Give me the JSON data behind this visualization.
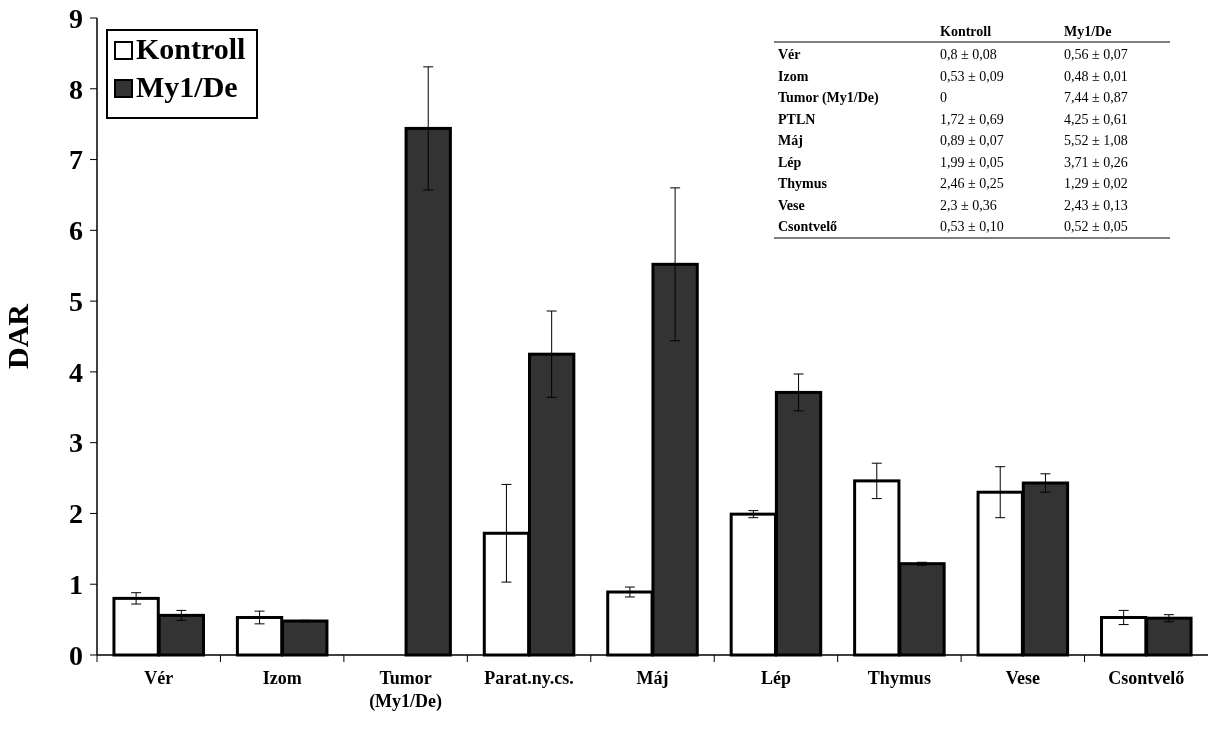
{
  "chart_data": {
    "type": "bar",
    "ylabel": "DAR",
    "categories": [
      "Vér",
      "Izom",
      "Tumor\n(My1/De)",
      "Parat.ny.cs.",
      "Máj",
      "Lép",
      "Thymus",
      "Vese",
      "Csontvelő"
    ],
    "series": [
      {
        "name": "Kontroll",
        "color": "#ffffff",
        "values": [
          0.8,
          0.53,
          0,
          1.72,
          0.89,
          1.99,
          2.46,
          2.3,
          0.53
        ],
        "errors": [
          0.08,
          0.09,
          null,
          0.69,
          0.07,
          0.05,
          0.25,
          0.36,
          0.1
        ]
      },
      {
        "name": "My1/De",
        "color": "#333333",
        "values": [
          0.56,
          0.48,
          7.44,
          4.25,
          5.52,
          3.71,
          1.29,
          2.43,
          0.52
        ],
        "errors": [
          0.07,
          0.01,
          0.87,
          0.61,
          1.08,
          0.26,
          0.02,
          0.13,
          0.05
        ]
      }
    ],
    "annotations": [
      "Vér",
      "0,8 ± 0,08",
      "0,56 ± 0,07",
      "Izom",
      "0,53 ± 0,09",
      "0,48 ± 0,01",
      "Tumor (My1/De)",
      "0",
      "7,44 ± 0,87",
      "PTLN",
      "1,72 ± 0,69",
      "4,25 ± 0,61",
      "Máj",
      "0,89 ± 0,07",
      "5,52 ± 1,08",
      "Lép",
      "1,99 ± 0,05",
      "3,71 ± 0,26",
      "Thymus",
      "2,46 ± 0,25",
      "1,29 ± 0,02",
      "Vese",
      "2,3 ± 0,36",
      "2,43 ± 0,13",
      "Csontvelő",
      "0,53 ± 0,10",
      "0,52 ± 0,05"
    ],
    "ylim": [
      0,
      9
    ],
    "yticks": [
      0,
      1,
      2,
      3,
      4,
      5,
      6,
      7,
      8,
      9
    ],
    "grid": false,
    "legend": "top left"
  }
}
